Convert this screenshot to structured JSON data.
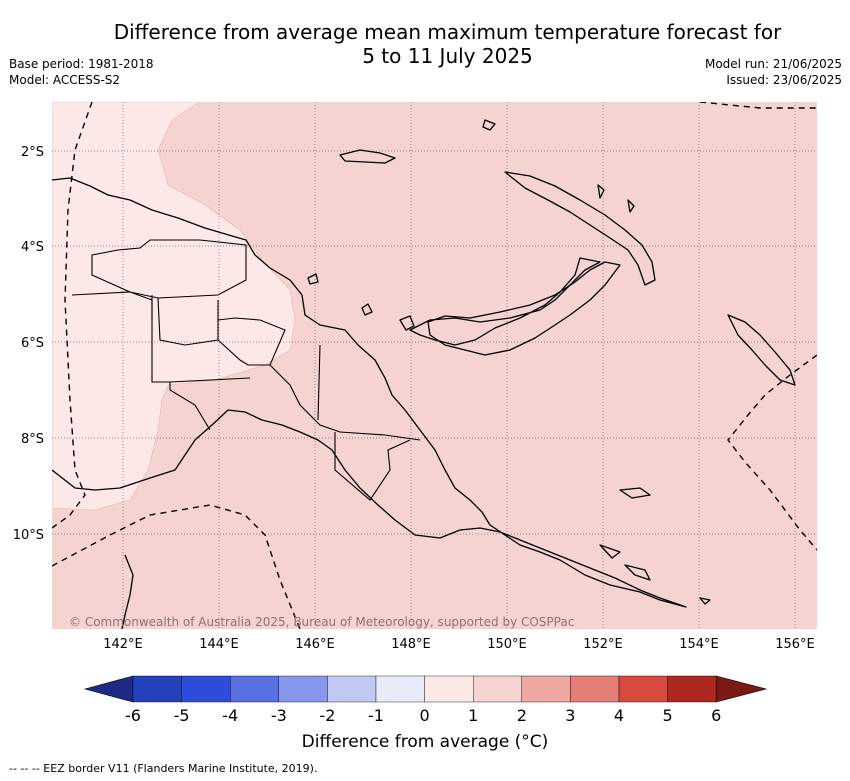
{
  "title_line1": "Difference from average mean maximum temperature forecast for",
  "title_line2": "5 to 11 July 2025",
  "meta_left": [
    "Base period: 1981-2018",
    "Model: ACCESS-S2"
  ],
  "meta_right": [
    "Model run: 21/06/2025",
    "Issued: 23/06/2025"
  ],
  "lat_labels": [
    "2°S",
    "4°S",
    "6°S",
    "8°S",
    "10°S"
  ],
  "lon_labels": [
    "142°E",
    "144°E",
    "146°E",
    "148°E",
    "150°E",
    "152°E",
    "154°E",
    "156°E"
  ],
  "copyright": "© Commonwealth of Australia 2025, Bureau of Meteorology, supported by COSPPac",
  "colorbar": {
    "ticks": [
      "-6",
      "-5",
      "-4",
      "-3",
      "-2",
      "-1",
      "0",
      "1",
      "2",
      "3",
      "4",
      "5",
      "6"
    ],
    "colors": [
      "#1e2b86",
      "#2540bb",
      "#2d4cdb",
      "#5a6fe3",
      "#8798ec",
      "#c2c8f4",
      "#e8ebfa",
      "#fce9e7",
      "#f5d3d0",
      "#eea8a2",
      "#e57e77",
      "#d94a3e",
      "#ae2820",
      "#7a1a14"
    ],
    "title": "Difference from average (°C)"
  },
  "colors": {
    "anomaly_0_1": "#fce9e7",
    "anomaly_1_2": "#f5d3d0",
    "coast": "#000000"
  },
  "footnote": "-- -- -- EEZ border V11 (Flanders Marine Institute, 2019)."
}
